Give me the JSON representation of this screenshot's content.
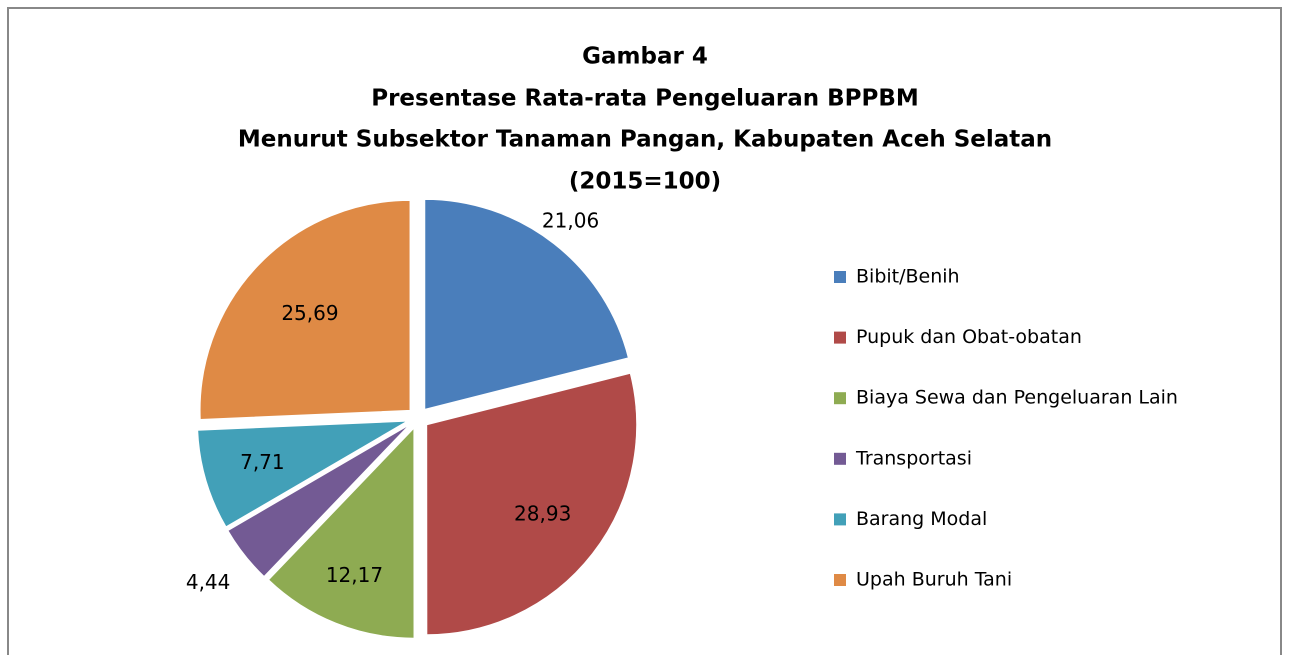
{
  "chart_data": {
    "type": "pie",
    "title": [
      "Gambar 4",
      "Presentase Rata-rata Pengeluaran BPPBM",
      "Menurut Subsektor Tanaman Pangan, Kabupaten Aceh Selatan",
      "(2015=100)"
    ],
    "categories": [
      "Bibit/Benih",
      "Pupuk dan Obat-obatan",
      "Biaya Sewa dan Pengeluaran Lain",
      "Transportasi",
      "Barang Modal",
      "Upah Buruh Tani"
    ],
    "values": [
      21.06,
      28.93,
      12.17,
      4.44,
      7.71,
      25.69
    ],
    "value_labels": [
      "21,06",
      "28,93",
      "12,17",
      "4,44",
      "7,71",
      "25,69"
    ],
    "colors": [
      "#4a7ebb",
      "#b04a48",
      "#8eab52",
      "#735a94",
      "#42a0b8",
      "#df8a45"
    ],
    "legend": "right"
  }
}
